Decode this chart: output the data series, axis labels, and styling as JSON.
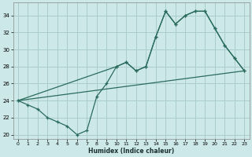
{
  "xlabel": "Humidex (Indice chaleur)",
  "background_color": "#cde8e8",
  "grid_color": "#aacccc",
  "line_color": "#2a6b5e",
  "xlim": [
    -0.5,
    23.5
  ],
  "ylim": [
    19.5,
    35.5
  ],
  "xticks": [
    0,
    1,
    2,
    3,
    4,
    5,
    6,
    7,
    8,
    9,
    10,
    11,
    12,
    13,
    14,
    15,
    16,
    17,
    18,
    19,
    20,
    21,
    22,
    23
  ],
  "yticks": [
    20,
    22,
    24,
    26,
    28,
    30,
    32,
    34
  ],
  "line1_x": [
    0,
    1,
    2,
    3,
    4,
    5,
    6,
    7,
    8,
    9,
    10,
    11,
    12,
    13,
    14,
    15,
    16,
    17,
    18,
    19,
    20,
    21,
    22,
    23
  ],
  "line1_y": [
    24,
    23.5,
    23,
    22,
    21.5,
    21,
    20,
    20.5,
    24.5,
    26,
    28,
    28.5,
    27.5,
    28,
    31.5,
    34.5,
    33,
    34,
    34.5,
    34.5,
    32.5,
    30.5,
    29,
    27.5
  ],
  "line2_x": [
    0,
    10,
    11,
    12,
    13,
    14,
    15,
    16,
    17,
    18,
    19,
    20,
    21,
    22,
    23
  ],
  "line2_y": [
    24,
    28,
    28.5,
    27.5,
    28,
    31.5,
    34.5,
    33,
    34,
    34.5,
    34.5,
    32.5,
    30.5,
    29,
    27.5
  ],
  "line3_x": [
    0,
    23
  ],
  "line3_y": [
    24,
    27.5
  ]
}
